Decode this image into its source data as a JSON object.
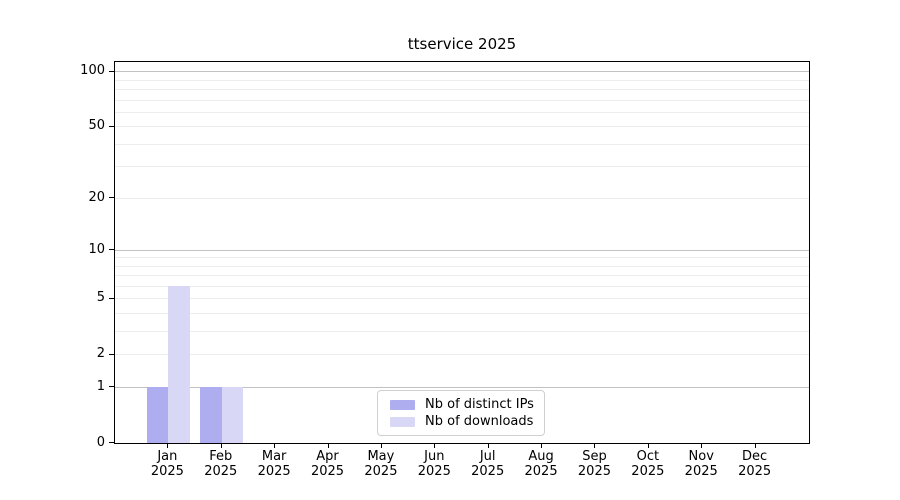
{
  "chart_data": {
    "type": "bar",
    "title": "ttservice 2025",
    "xlabel": "",
    "ylabel": "",
    "categories": [
      "Jan",
      "Feb",
      "Mar",
      "Apr",
      "May",
      "Jun",
      "Jul",
      "Aug",
      "Sep",
      "Oct",
      "Nov",
      "Dec"
    ],
    "year_label": "2025",
    "series": [
      {
        "name": "Nb of distinct IPs",
        "color": "#adadf0",
        "values": [
          1,
          1,
          0,
          0,
          0,
          0,
          0,
          0,
          0,
          0,
          0,
          0
        ]
      },
      {
        "name": "Nb of downloads",
        "color": "#d8d8f6",
        "values": [
          6,
          1,
          0,
          0,
          0,
          0,
          0,
          0,
          0,
          0,
          0,
          0
        ]
      }
    ],
    "yscale": "log1p",
    "ylim": [
      0,
      113
    ],
    "yticks": [
      0,
      1,
      2,
      5,
      10,
      20,
      50,
      100
    ],
    "gridlines": {
      "major": [
        1,
        10,
        100
      ],
      "minor": [
        2,
        3,
        4,
        5,
        6,
        7,
        8,
        9,
        20,
        30,
        40,
        50,
        60,
        70,
        80,
        90
      ]
    },
    "grid": true,
    "legend_position": "lower center",
    "colors": {
      "background": "#ffffff",
      "spine": "#000000",
      "major_grid": "#c2c2c2",
      "minor_grid": "#ededed",
      "text": "#000000"
    }
  }
}
